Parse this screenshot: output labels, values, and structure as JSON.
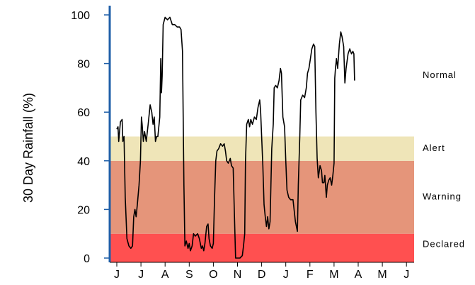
{
  "chart_data": {
    "type": "line",
    "title": "",
    "ylabel": "30 Day Rainfall (%)",
    "xlabel": "",
    "ylim": [
      0,
      105
    ],
    "xlim": [
      0,
      12.6
    ],
    "y_ticks": [
      0,
      20,
      40,
      60,
      80,
      100
    ],
    "x_tick_labels": [
      "J",
      "J",
      "A",
      "S",
      "O",
      "N",
      "D",
      "J",
      "F",
      "M",
      "A",
      "M",
      "J"
    ],
    "grid": false,
    "legend": "none",
    "zones": [
      {
        "name": "Declared",
        "from": 0,
        "to": 10,
        "color": "#ff5050"
      },
      {
        "name": "Warning",
        "from": 10,
        "to": 40,
        "color": "#e5957a"
      },
      {
        "name": "Alert",
        "from": 40,
        "to": 50,
        "color": "#efe5b8"
      },
      {
        "name": "Normal",
        "from": 50,
        "to": 105,
        "color": "#ffffff"
      }
    ],
    "series": [
      {
        "color": "#000000",
        "points": [
          [
            0.0,
            53
          ],
          [
            0.05,
            54
          ],
          [
            0.08,
            48
          ],
          [
            0.15,
            56
          ],
          [
            0.22,
            57
          ],
          [
            0.25,
            48
          ],
          [
            0.3,
            50
          ],
          [
            0.35,
            25
          ],
          [
            0.42,
            8
          ],
          [
            0.5,
            5
          ],
          [
            0.58,
            4
          ],
          [
            0.65,
            5
          ],
          [
            0.7,
            17
          ],
          [
            0.75,
            20
          ],
          [
            0.8,
            17
          ],
          [
            0.85,
            22
          ],
          [
            0.92,
            30
          ],
          [
            0.98,
            40
          ],
          [
            1.02,
            58
          ],
          [
            1.05,
            55
          ],
          [
            1.1,
            48
          ],
          [
            1.15,
            52
          ],
          [
            1.22,
            48
          ],
          [
            1.3,
            55
          ],
          [
            1.38,
            63
          ],
          [
            1.45,
            60
          ],
          [
            1.5,
            55
          ],
          [
            1.55,
            58
          ],
          [
            1.6,
            48
          ],
          [
            1.65,
            50
          ],
          [
            1.7,
            50
          ],
          [
            1.78,
            58
          ],
          [
            1.82,
            82
          ],
          [
            1.85,
            68
          ],
          [
            1.88,
            75
          ],
          [
            1.92,
            96
          ],
          [
            2.0,
            99
          ],
          [
            2.1,
            98
          ],
          [
            2.2,
            99
          ],
          [
            2.3,
            96
          ],
          [
            2.4,
            96
          ],
          [
            2.5,
            95
          ],
          [
            2.6,
            95
          ],
          [
            2.66,
            94
          ],
          [
            2.72,
            85
          ],
          [
            2.78,
            30
          ],
          [
            2.82,
            5
          ],
          [
            2.88,
            7
          ],
          [
            2.95,
            4
          ],
          [
            3.0,
            6
          ],
          [
            3.05,
            3
          ],
          [
            3.12,
            5
          ],
          [
            3.18,
            10
          ],
          [
            3.25,
            9
          ],
          [
            3.35,
            10
          ],
          [
            3.42,
            8
          ],
          [
            3.5,
            4
          ],
          [
            3.55,
            5
          ],
          [
            3.6,
            3
          ],
          [
            3.65,
            6
          ],
          [
            3.72,
            13
          ],
          [
            3.78,
            14
          ],
          [
            3.82,
            8
          ],
          [
            3.88,
            5
          ],
          [
            3.95,
            4
          ],
          [
            4.0,
            6
          ],
          [
            4.05,
            25
          ],
          [
            4.1,
            40
          ],
          [
            4.15,
            44
          ],
          [
            4.22,
            45
          ],
          [
            4.3,
            47
          ],
          [
            4.38,
            46
          ],
          [
            4.45,
            47
          ],
          [
            4.5,
            44
          ],
          [
            4.55,
            40
          ],
          [
            4.62,
            39
          ],
          [
            4.7,
            41
          ],
          [
            4.75,
            38
          ],
          [
            4.82,
            37
          ],
          [
            4.88,
            15
          ],
          [
            4.92,
            0
          ],
          [
            5.0,
            0
          ],
          [
            5.1,
            0
          ],
          [
            5.2,
            1
          ],
          [
            5.25,
            5
          ],
          [
            5.3,
            10
          ],
          [
            5.33,
            40
          ],
          [
            5.38,
            55
          ],
          [
            5.45,
            57
          ],
          [
            5.5,
            54
          ],
          [
            5.55,
            57
          ],
          [
            5.62,
            55
          ],
          [
            5.7,
            58
          ],
          [
            5.78,
            57
          ],
          [
            5.85,
            62
          ],
          [
            5.92,
            65
          ],
          [
            5.96,
            60
          ],
          [
            6.0,
            50
          ],
          [
            6.05,
            38
          ],
          [
            6.1,
            22
          ],
          [
            6.15,
            17
          ],
          [
            6.2,
            13
          ],
          [
            6.25,
            17
          ],
          [
            6.3,
            12
          ],
          [
            6.35,
            15
          ],
          [
            6.42,
            45
          ],
          [
            6.48,
            55
          ],
          [
            6.52,
            70
          ],
          [
            6.58,
            71
          ],
          [
            6.65,
            70
          ],
          [
            6.72,
            73
          ],
          [
            6.78,
            78
          ],
          [
            6.82,
            76
          ],
          [
            6.88,
            58
          ],
          [
            6.95,
            54
          ],
          [
            7.0,
            40
          ],
          [
            7.05,
            28
          ],
          [
            7.12,
            25
          ],
          [
            7.2,
            24
          ],
          [
            7.3,
            24
          ],
          [
            7.4,
            15
          ],
          [
            7.48,
            11
          ],
          [
            7.52,
            30
          ],
          [
            7.58,
            50
          ],
          [
            7.62,
            65
          ],
          [
            7.7,
            67
          ],
          [
            7.78,
            66
          ],
          [
            7.85,
            70
          ],
          [
            7.9,
            76
          ],
          [
            7.96,
            78
          ],
          [
            8.02,
            82
          ],
          [
            8.08,
            86
          ],
          [
            8.15,
            88
          ],
          [
            8.2,
            87
          ],
          [
            8.25,
            60
          ],
          [
            8.3,
            41
          ],
          [
            8.35,
            33
          ],
          [
            8.42,
            38
          ],
          [
            8.48,
            36
          ],
          [
            8.52,
            31
          ],
          [
            8.58,
            31
          ],
          [
            8.62,
            34
          ],
          [
            8.68,
            25
          ],
          [
            8.72,
            30
          ],
          [
            8.78,
            32
          ],
          [
            8.84,
            33
          ],
          [
            8.9,
            30
          ],
          [
            8.95,
            34
          ],
          [
            9.0,
            39
          ],
          [
            9.03,
            74
          ],
          [
            9.06,
            78
          ],
          [
            9.1,
            82
          ],
          [
            9.15,
            78
          ],
          [
            9.22,
            88
          ],
          [
            9.28,
            93
          ],
          [
            9.33,
            91
          ],
          [
            9.4,
            87
          ],
          [
            9.45,
            72
          ],
          [
            9.5,
            78
          ],
          [
            9.58,
            84
          ],
          [
            9.65,
            86
          ],
          [
            9.72,
            84
          ],
          [
            9.78,
            85
          ],
          [
            9.82,
            84
          ],
          [
            9.85,
            73
          ]
        ]
      }
    ],
    "x_scale_note": "months from start"
  }
}
